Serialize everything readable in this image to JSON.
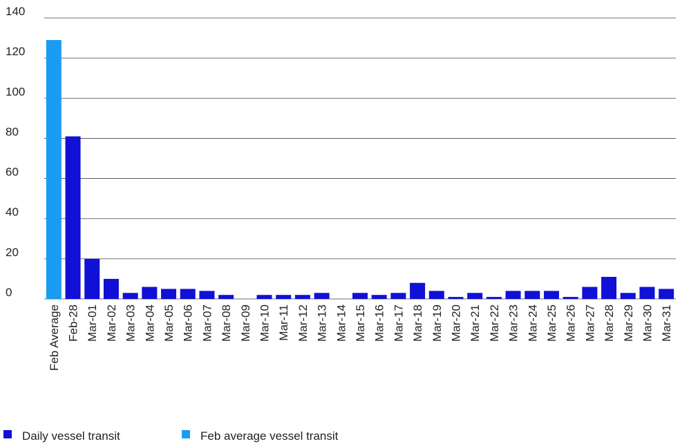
{
  "chart_data": {
    "type": "bar",
    "categories": [
      "Feb Average",
      "Feb-28",
      "Mar-01",
      "Mar-02",
      "Mar-03",
      "Mar-04",
      "Mar-05",
      "Mar-06",
      "Mar-07",
      "Mar-08",
      "Mar-09",
      "Mar-10",
      "Mar-11",
      "Mar-12",
      "Mar-13",
      "Mar-14",
      "Mar-15",
      "Mar-16",
      "Mar-17",
      "Mar-18",
      "Mar-19",
      "Mar-20",
      "Mar-21",
      "Mar-22",
      "Mar-23",
      "Mar-24",
      "Mar-25",
      "Mar-26",
      "Mar-27",
      "Mar-28",
      "Mar-29",
      "Mar-30",
      "Mar-31"
    ],
    "series": [
      {
        "name": "Daily vessel transit",
        "color": "#1010d6",
        "values": [
          null,
          81,
          20,
          10,
          3,
          6,
          5,
          5,
          4,
          2,
          0,
          2,
          2,
          2,
          3,
          0,
          3,
          2,
          3,
          8,
          4,
          1,
          3,
          1,
          4,
          4,
          4,
          1,
          6,
          11,
          3,
          6,
          5
        ]
      },
      {
        "name": "Feb average vessel transit",
        "color": "#1a9cf2",
        "values": [
          129,
          null,
          null,
          null,
          null,
          null,
          null,
          null,
          null,
          null,
          null,
          null,
          null,
          null,
          null,
          null,
          null,
          null,
          null,
          null,
          null,
          null,
          null,
          null,
          null,
          null,
          null,
          null,
          null,
          null,
          null,
          null,
          null
        ]
      }
    ],
    "ylim": [
      0,
      140
    ],
    "yticks": [
      0,
      20,
      40,
      60,
      80,
      100,
      120,
      140
    ],
    "grid": true
  }
}
